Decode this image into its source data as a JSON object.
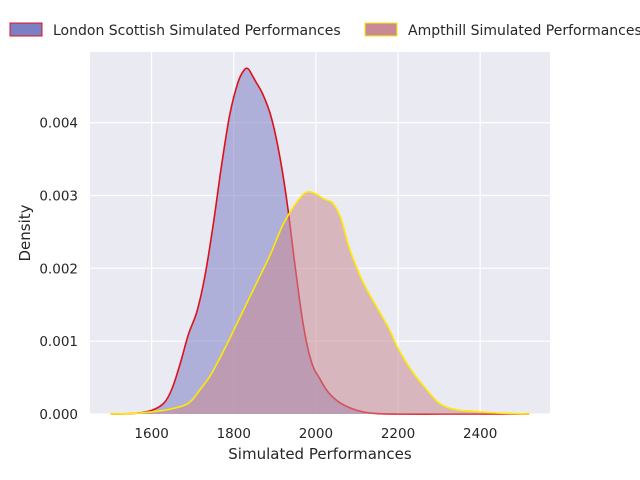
{
  "chart_data": {
    "type": "area",
    "xlabel": "Simulated Performances",
    "ylabel": "Density",
    "xlim": [
      1450,
      2570
    ],
    "ylim": [
      0,
      0.00497
    ],
    "x_ticks": [
      "1600",
      "1800",
      "2000",
      "2200",
      "2400"
    ],
    "y_ticks": [
      "0.000",
      "0.001",
      "0.002",
      "0.003",
      "0.004"
    ],
    "grid": true,
    "legend": "top, outside, horizontal",
    "series": [
      {
        "name": "London Scottish Simulated Performances",
        "fill": "#7b7fc4",
        "edge": "#e0101a",
        "x": [
          1500,
          1560,
          1600,
          1630,
          1650,
          1670,
          1690,
          1710,
          1730,
          1750,
          1770,
          1790,
          1810,
          1825,
          1835,
          1845,
          1855,
          1870,
          1890,
          1910,
          1930,
          1950,
          1970,
          1990,
          2010,
          2030,
          2060,
          2100,
          2140,
          2200,
          2300,
          2400,
          2520
        ],
        "values": [
          0,
          1e-05,
          5e-05,
          0.00015,
          0.00035,
          0.0007,
          0.0011,
          0.0014,
          0.0019,
          0.0026,
          0.0034,
          0.0041,
          0.00455,
          0.00472,
          0.00474,
          0.00465,
          0.00455,
          0.0044,
          0.0041,
          0.0036,
          0.0029,
          0.002,
          0.0012,
          0.0007,
          0.00048,
          0.0003,
          0.00015,
          5e-05,
          1e-05,
          0,
          0,
          0,
          0
        ]
      },
      {
        "name": "Ampthill Simulated Performances",
        "fill": "#c88a94",
        "edge": "#ffea00",
        "x": [
          1500,
          1560,
          1600,
          1640,
          1680,
          1700,
          1720,
          1740,
          1760,
          1780,
          1800,
          1830,
          1860,
          1890,
          1920,
          1950,
          1970,
          1985,
          2000,
          2020,
          2040,
          2060,
          2080,
          2100,
          2120,
          2150,
          2180,
          2200,
          2230,
          2260,
          2300,
          2340,
          2380,
          2420,
          2460,
          2520
        ],
        "values": [
          0,
          1e-05,
          3e-05,
          6e-05,
          0.00012,
          0.0002,
          0.00035,
          0.0005,
          0.0007,
          0.00092,
          0.00115,
          0.0015,
          0.00185,
          0.0022,
          0.0026,
          0.00288,
          0.00302,
          0.00305,
          0.00302,
          0.00295,
          0.0029,
          0.0027,
          0.0023,
          0.002,
          0.00175,
          0.00145,
          0.00115,
          0.0009,
          0.00062,
          0.0004,
          0.00015,
          6e-05,
          4e-05,
          2e-05,
          1e-05,
          0
        ]
      }
    ]
  }
}
